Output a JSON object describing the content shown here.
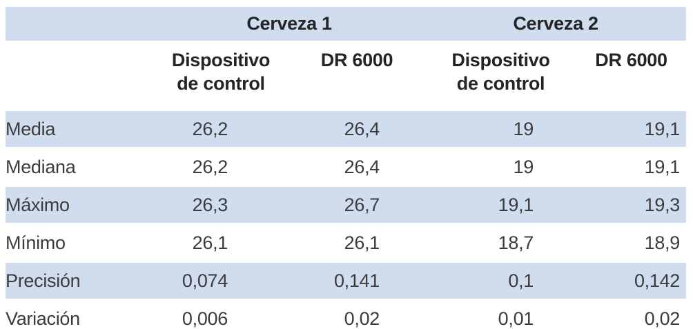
{
  "colors": {
    "band_blue": "#cfddee",
    "header_text": "#252527",
    "body_text": "#3c3c3e",
    "background": "#ffffff"
  },
  "chart_data": {
    "type": "table",
    "group_headers": [
      {
        "label": "Cerveza 1",
        "span": 2
      },
      {
        "label": "Cerveza 2",
        "span": 2
      }
    ],
    "col_headers": [
      "Dispositivo\nde control",
      "DR 6000",
      "Dispositivo\nde control",
      "DR 6000"
    ],
    "rows": [
      {
        "label": "Media",
        "values": [
          "26,2",
          "26,4",
          "19",
          "19,1"
        ]
      },
      {
        "label": "Mediana",
        "values": [
          "26,2",
          "26,4",
          "19",
          "19,1"
        ]
      },
      {
        "label": "Máximo",
        "values": [
          "26,3",
          "26,7",
          "19,1",
          "19,3"
        ]
      },
      {
        "label": "Mínimo",
        "values": [
          "26,1",
          "26,1",
          "18,7",
          "18,9"
        ]
      },
      {
        "label": "Precisión",
        "values": [
          "0,074",
          "0,141",
          "0,1",
          "0,142"
        ]
      },
      {
        "label": "Variación",
        "values": [
          "0,006",
          "0,02",
          "0,01",
          "0,02"
        ]
      }
    ],
    "layout": {
      "row_striping": "alternating blue/white starting blue",
      "numeric_alignment": "right"
    }
  }
}
